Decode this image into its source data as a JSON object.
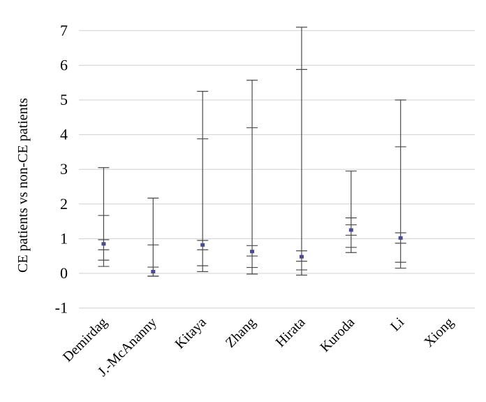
{
  "chart_data": {
    "type": "error-bar",
    "ylabel": "CE patients vs non-CE patients",
    "ylim": [
      -1,
      7
    ],
    "yticks": [
      -1,
      0,
      1,
      2,
      3,
      4,
      5,
      6,
      7
    ],
    "grid": true,
    "categories": [
      "Demirdag",
      "J.-McAnanny",
      "Kitaya",
      "Zhang",
      "Hirata",
      "Kuroda",
      "Li",
      "Xiong"
    ],
    "series": [
      {
        "points": [
          {
            "category": "Demirdag",
            "low": 0.2,
            "high": 3.05,
            "inner_low": 0.38,
            "inner_high": 1.67,
            "ticks": [
              0.68,
              0.97
            ],
            "value": 0.85
          },
          {
            "category": "J.-McAnanny",
            "low": -0.08,
            "high": 2.17,
            "inner_low": -0.08,
            "inner_high": 0.82,
            "ticks": [
              0.18
            ],
            "value": 0.05
          },
          {
            "category": "Kitaya",
            "low": 0.05,
            "high": 5.25,
            "inner_low": 0.22,
            "inner_high": 3.88,
            "ticks": [
              0.68,
              0.95
            ],
            "value": 0.82
          },
          {
            "category": "Zhang",
            "low": -0.02,
            "high": 5.57,
            "inner_low": 0.17,
            "inner_high": 4.2,
            "ticks": [
              0.5,
              0.8
            ],
            "value": 0.63
          },
          {
            "category": "Hirata",
            "low": -0.05,
            "high": 7.1,
            "inner_low": 0.1,
            "inner_high": 5.88,
            "ticks": [
              0.35,
              0.65
            ],
            "value": 0.48
          },
          {
            "category": "Kuroda",
            "low": 0.6,
            "high": 2.95,
            "inner_low": 0.75,
            "inner_high": 1.6,
            "ticks": [
              1.1,
              1.4
            ],
            "value": 1.25
          },
          {
            "category": "Li",
            "low": 0.15,
            "high": 5.0,
            "inner_low": 0.32,
            "inner_high": 3.65,
            "ticks": [
              0.87,
              1.17
            ],
            "value": 1.02
          }
        ]
      }
    ]
  }
}
